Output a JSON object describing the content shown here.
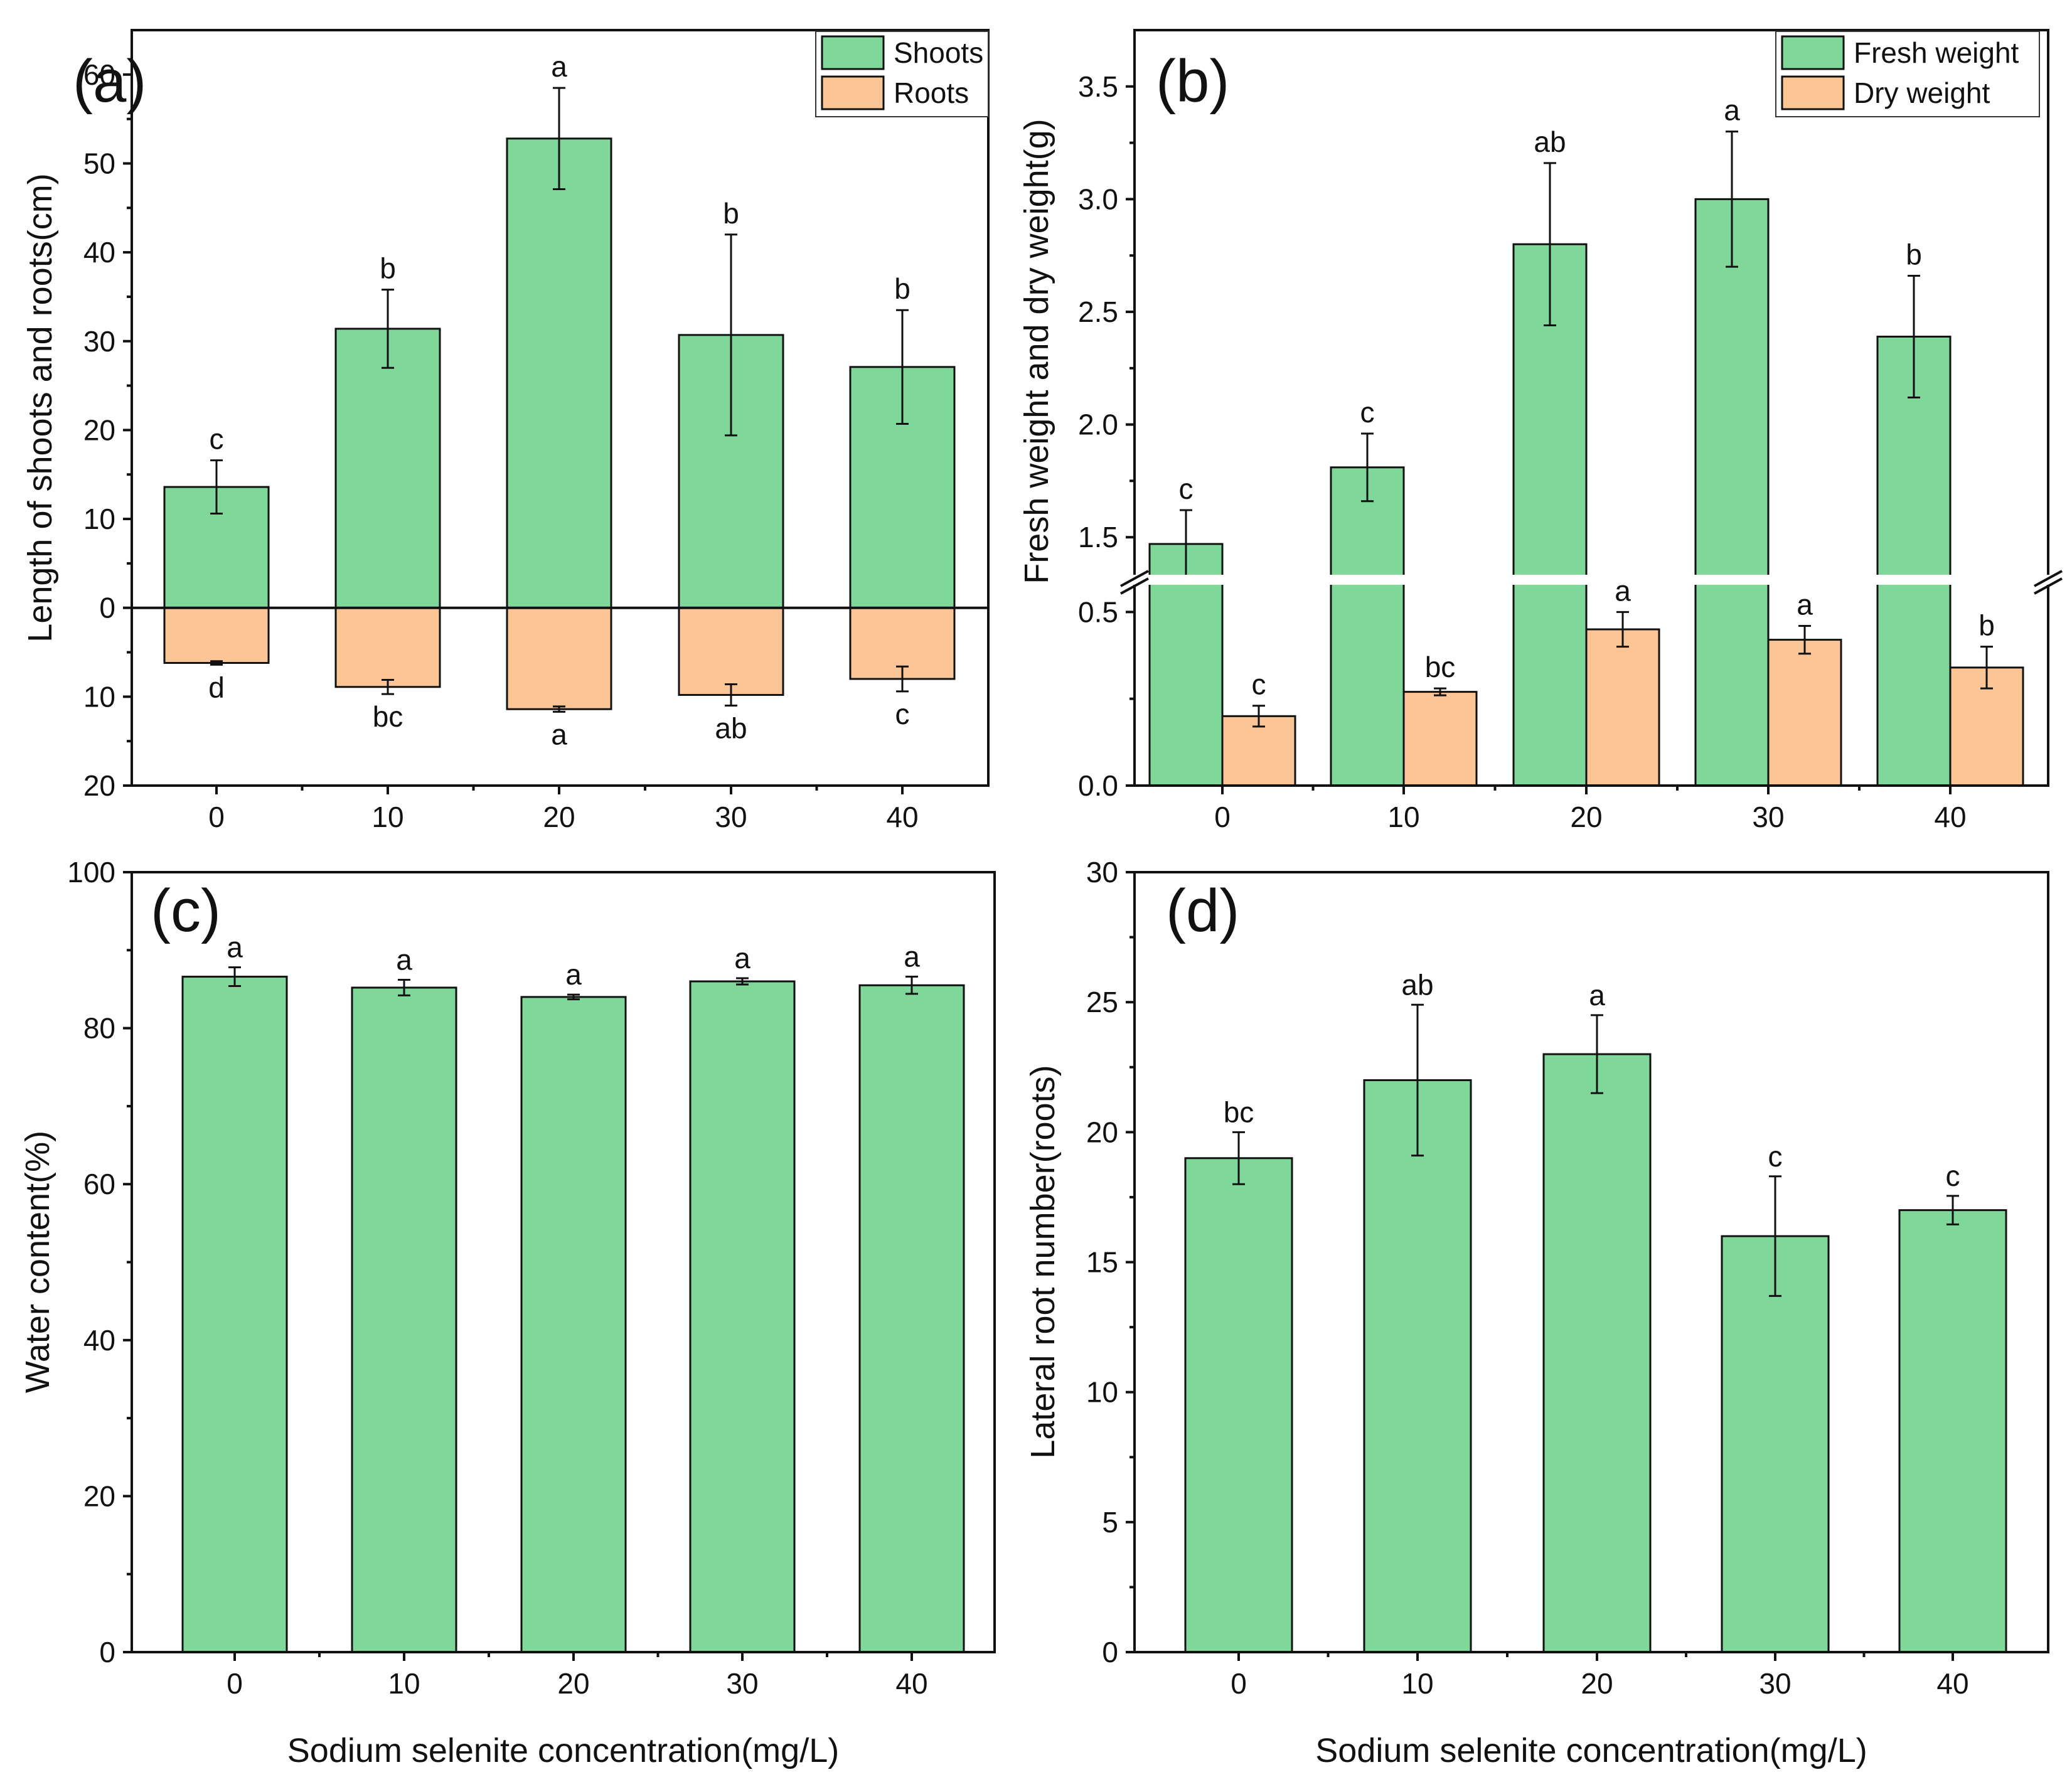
{
  "colors": {
    "shoots": "#7fd79a",
    "roots": "#fcc596",
    "axis": "#111111"
  },
  "chart_data": [
    {
      "id": "a",
      "panel_label": "(a)",
      "type": "bar",
      "categories": [
        "0",
        "10",
        "20",
        "30",
        "40"
      ],
      "xlabel": "",
      "ylabel": "Length  of shoots and roots(cm)",
      "ylim": [
        -20,
        65
      ],
      "yticks": [
        -20,
        -10,
        0,
        10,
        20,
        30,
        40,
        50,
        60
      ],
      "ytick_labels": [
        "20",
        "10",
        "0",
        "10",
        "20",
        "30",
        "40",
        "50",
        "60"
      ],
      "legend_position": "top-right",
      "series": [
        {
          "name": "Shoots",
          "color": "#7fd79a",
          "values": [
            13.6,
            31.4,
            52.8,
            30.7,
            27.1
          ],
          "errors": [
            3.0,
            4.4,
            5.7,
            11.3,
            6.4
          ],
          "labels": [
            "c",
            "b",
            "a",
            "b",
            "b"
          ]
        },
        {
          "name": "Roots",
          "color": "#fcc596",
          "values": [
            -6.2,
            -8.9,
            -11.4,
            -9.8,
            -8.0
          ],
          "errors": [
            0.2,
            0.8,
            0.3,
            1.2,
            1.4
          ],
          "labels": [
            "d",
            "bc",
            "a",
            "ab",
            "c"
          ]
        }
      ]
    },
    {
      "id": "b",
      "panel_label": "(b)",
      "type": "bar",
      "categories": [
        "0",
        "10",
        "20",
        "30",
        "40"
      ],
      "xlabel": "",
      "ylabel": "Fresh weight and dry weight(g)",
      "ylim": [
        0,
        3.75
      ],
      "axis_break": [
        0.6,
        1.3
      ],
      "yticks": [
        0.0,
        0.5,
        1.5,
        2.0,
        2.5,
        3.0,
        3.5
      ],
      "ytick_labels": [
        "0.0",
        "0.5",
        "1.5",
        "2.0",
        "2.5",
        "3.0",
        "3.5"
      ],
      "legend_position": "top-right",
      "series": [
        {
          "name": "Fresh weight",
          "color": "#7fd79a",
          "values": [
            1.47,
            1.81,
            2.8,
            3.0,
            2.39
          ],
          "errors": [
            0.15,
            0.15,
            0.36,
            0.3,
            0.27
          ],
          "labels": [
            "c",
            "c",
            "ab",
            "a",
            "b"
          ]
        },
        {
          "name": "Dry weight",
          "color": "#fcc596",
          "values": [
            0.2,
            0.27,
            0.45,
            0.42,
            0.34
          ],
          "errors": [
            0.03,
            0.01,
            0.05,
            0.04,
            0.06
          ],
          "labels": [
            "c",
            "bc",
            "a",
            "a",
            "b"
          ]
        }
      ]
    },
    {
      "id": "c",
      "panel_label": "(c)",
      "type": "bar",
      "categories": [
        "0",
        "10",
        "20",
        "30",
        "40"
      ],
      "xlabel": "Sodium selenite concentration(mg/L)",
      "ylabel": "Water content(%)",
      "ylim": [
        0,
        100
      ],
      "yticks": [
        0,
        20,
        40,
        60,
        80,
        100
      ],
      "ytick_labels": [
        "0",
        "20",
        "40",
        "60",
        "80",
        "100"
      ],
      "series": [
        {
          "name": "Water content",
          "color": "#7fd79a",
          "values": [
            86.6,
            85.2,
            84.0,
            86.0,
            85.5
          ],
          "errors": [
            1.2,
            1.0,
            0.3,
            0.4,
            1.1
          ],
          "labels": [
            "a",
            "a",
            "a",
            "a",
            "a"
          ]
        }
      ]
    },
    {
      "id": "d",
      "panel_label": "(d)",
      "type": "bar",
      "categories": [
        "0",
        "10",
        "20",
        "30",
        "40"
      ],
      "xlabel": "Sodium selenite  concentration(mg/L)",
      "ylabel": "Lateral root number(roots)",
      "ylim": [
        0,
        30
      ],
      "yticks": [
        0,
        5,
        10,
        15,
        20,
        25,
        30
      ],
      "ytick_labels": [
        "0",
        "5",
        "10",
        "15",
        "20",
        "25",
        "30"
      ],
      "series": [
        {
          "name": "Lateral root number",
          "color": "#7fd79a",
          "values": [
            19.0,
            22.0,
            23.0,
            16.0,
            17.0
          ],
          "errors": [
            1.0,
            2.9,
            1.5,
            2.3,
            0.55
          ],
          "labels": [
            "bc",
            "ab",
            "a",
            "c",
            "c"
          ]
        }
      ]
    }
  ]
}
